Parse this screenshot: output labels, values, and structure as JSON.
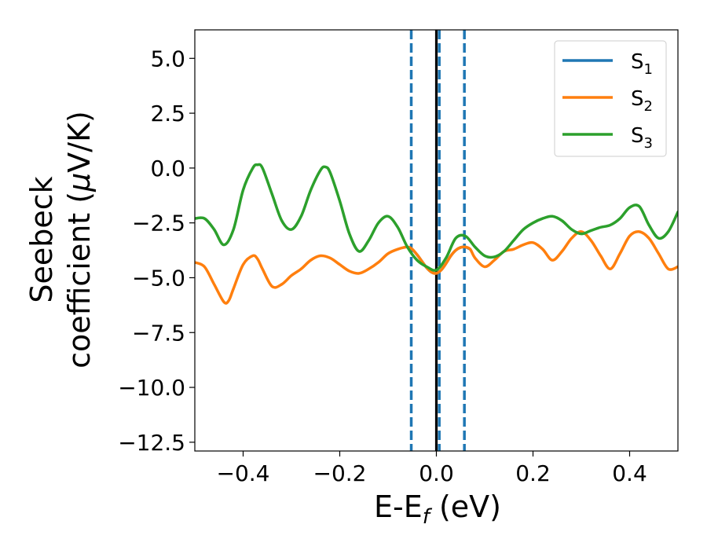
{
  "chart_data": {
    "type": "line",
    "title": "",
    "xlabel": "E-E",
    "xlabel_sub": "f",
    "xlabel_unit": " (eV)",
    "ylabel_line1": "Seebeck",
    "ylabel_line2_prefix": "coefficient  (",
    "ylabel_mu": "μ",
    "ylabel_line2_suffix": "V/K)",
    "xlim": [
      -0.5,
      0.5
    ],
    "ylim": [
      -12.9,
      6.3
    ],
    "xticks": [
      -0.4,
      -0.2,
      0.0,
      0.2,
      0.4
    ],
    "xtick_labels": [
      "−0.4",
      "−0.2",
      "0.0",
      "0.2",
      "0.4"
    ],
    "yticks": [
      5.0,
      2.5,
      0.0,
      -2.5,
      -5.0,
      -7.5,
      -10.0,
      -12.5
    ],
    "ytick_labels": [
      "5.0",
      "2.5",
      "0.0",
      "−2.5",
      "−5.0",
      "−7.5",
      "−10.0",
      "−12.5"
    ],
    "legend_position": "top-right",
    "vlines": [
      {
        "x": -0.052,
        "style": "dashed",
        "color": "#1f77b4"
      },
      {
        "x": 0.0,
        "style": "solid",
        "color": "#000000"
      },
      {
        "x": 0.006,
        "style": "dashed",
        "color": "#1f77b4"
      },
      {
        "x": 0.058,
        "style": "dashed",
        "color": "#1f77b4"
      }
    ],
    "series": [
      {
        "name": "S",
        "sub": "1",
        "color": "#1f77b4",
        "x": [
          -0.05,
          -0.04,
          -0.03,
          -0.02,
          -0.01,
          0.0,
          0.01,
          0.02,
          0.03,
          0.04,
          0.05,
          0.06,
          0.07
        ],
        "y": [
          -3.7,
          -3.95,
          -4.25,
          -4.55,
          -4.75,
          -4.8,
          -4.65,
          -4.35,
          -4.0,
          -3.75,
          -3.62,
          -3.6,
          -3.7
        ]
      },
      {
        "name": "S",
        "sub": "2",
        "color": "#ff7f0e",
        "x": [
          -0.5,
          -0.48,
          -0.46,
          -0.44,
          -0.43,
          -0.42,
          -0.4,
          -0.38,
          -0.37,
          -0.36,
          -0.34,
          -0.32,
          -0.3,
          -0.28,
          -0.26,
          -0.24,
          -0.22,
          -0.2,
          -0.18,
          -0.16,
          -0.14,
          -0.12,
          -0.1,
          -0.08,
          -0.06,
          -0.05,
          -0.04,
          -0.03,
          -0.02,
          -0.01,
          0.0,
          0.01,
          0.02,
          0.03,
          0.04,
          0.05,
          0.06,
          0.07,
          0.08,
          0.1,
          0.12,
          0.14,
          0.16,
          0.18,
          0.2,
          0.22,
          0.24,
          0.26,
          0.28,
          0.3,
          0.32,
          0.34,
          0.36,
          0.38,
          0.4,
          0.42,
          0.44,
          0.46,
          0.48,
          0.5
        ],
        "y": [
          -4.3,
          -4.5,
          -5.3,
          -6.1,
          -6.05,
          -5.5,
          -4.4,
          -4.0,
          -4.15,
          -4.6,
          -5.4,
          -5.3,
          -4.9,
          -4.6,
          -4.2,
          -4.0,
          -4.1,
          -4.4,
          -4.7,
          -4.8,
          -4.6,
          -4.3,
          -3.9,
          -3.7,
          -3.6,
          -3.7,
          -3.95,
          -4.25,
          -4.55,
          -4.75,
          -4.8,
          -4.65,
          -4.35,
          -4.0,
          -3.75,
          -3.62,
          -3.6,
          -3.7,
          -4.1,
          -4.5,
          -4.2,
          -3.8,
          -3.7,
          -3.5,
          -3.4,
          -3.7,
          -4.2,
          -3.8,
          -3.2,
          -2.9,
          -3.3,
          -4.0,
          -4.6,
          -3.9,
          -3.1,
          -2.9,
          -3.2,
          -3.9,
          -4.6,
          -4.5
        ]
      },
      {
        "name": "S",
        "sub": "3",
        "color": "#2ca02c",
        "x": [
          -0.5,
          -0.48,
          -0.46,
          -0.44,
          -0.42,
          -0.4,
          -0.38,
          -0.37,
          -0.36,
          -0.34,
          -0.32,
          -0.3,
          -0.28,
          -0.26,
          -0.24,
          -0.23,
          -0.22,
          -0.2,
          -0.18,
          -0.16,
          -0.14,
          -0.12,
          -0.1,
          -0.08,
          -0.06,
          -0.04,
          -0.02,
          0.0,
          0.02,
          0.04,
          0.06,
          0.08,
          0.1,
          0.12,
          0.14,
          0.16,
          0.18,
          0.2,
          0.22,
          0.24,
          0.26,
          0.28,
          0.3,
          0.32,
          0.34,
          0.36,
          0.38,
          0.4,
          0.42,
          0.44,
          0.46,
          0.48,
          0.5
        ],
        "y": [
          -2.3,
          -2.3,
          -2.8,
          -3.5,
          -2.8,
          -1.0,
          0.0,
          0.15,
          0.0,
          -1.2,
          -2.4,
          -2.8,
          -2.2,
          -1.0,
          -0.1,
          0.05,
          -0.2,
          -1.5,
          -3.0,
          -3.8,
          -3.3,
          -2.5,
          -2.2,
          -2.7,
          -3.6,
          -4.2,
          -4.5,
          -4.65,
          -4.1,
          -3.2,
          -3.1,
          -3.6,
          -4.0,
          -4.05,
          -3.8,
          -3.3,
          -2.8,
          -2.5,
          -2.3,
          -2.2,
          -2.4,
          -2.8,
          -3.0,
          -2.85,
          -2.7,
          -2.6,
          -2.3,
          -1.8,
          -1.75,
          -2.6,
          -3.2,
          -2.9,
          -2.0
        ]
      }
    ]
  }
}
